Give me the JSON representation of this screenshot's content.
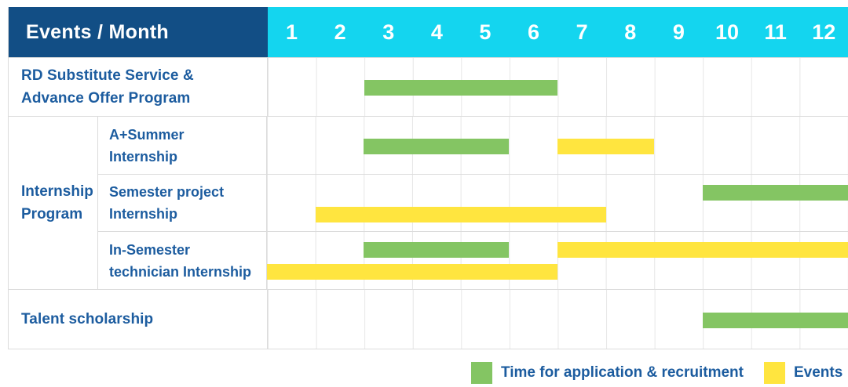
{
  "header": {
    "label": "Events / Month",
    "months": [
      "1",
      "2",
      "3",
      "4",
      "5",
      "6",
      "7",
      "8",
      "9",
      "10",
      "11",
      "12"
    ]
  },
  "colors": {
    "navy": "#124E85",
    "cyan": "#14D5EF",
    "green": "#84C563",
    "yellow": "#FFE53F",
    "text_blue": "#1C5C9F",
    "grid_line": "#e6e6e6"
  },
  "legend": {
    "items": [
      {
        "kind": "application",
        "label": "Time for application & recruitment"
      },
      {
        "kind": "event",
        "label": "Events"
      }
    ]
  },
  "chart_data": {
    "type": "bar",
    "subtype": "gantt-schedule-table",
    "x_unit": "month",
    "x_range": [
      1,
      12
    ],
    "bar_kinds": {
      "application": "Time for application & recruitment",
      "event": "Events"
    },
    "rows": [
      {
        "kind": "simple",
        "label_lines": [
          "RD Substitute Service &",
          "Advance Offer Program"
        ],
        "height": 75,
        "bars": [
          {
            "kind": "application",
            "start": 3,
            "end": 6,
            "lane": "center"
          }
        ]
      },
      {
        "kind": "group",
        "label_lines": [
          "Internship",
          "Program"
        ],
        "children": [
          {
            "label_lines": [
              "A+Summer",
              "Internship"
            ],
            "height": 73,
            "bars": [
              {
                "kind": "application",
                "start": 3,
                "end": 5,
                "lane": "center"
              },
              {
                "kind": "event",
                "start": 7,
                "end": 8,
                "lane": "center"
              }
            ]
          },
          {
            "label_lines": [
              "Semester project",
              "Internship"
            ],
            "height": 73,
            "bars": [
              {
                "kind": "application",
                "start": 10,
                "end": 12,
                "lane": "top"
              },
              {
                "kind": "event",
                "start": 2,
                "end": 7,
                "lane": "bottom"
              }
            ]
          },
          {
            "label_lines": [
              "In-Semester",
              "technician Internship"
            ],
            "height": 74,
            "bars": [
              {
                "kind": "application",
                "start": 3,
                "end": 5,
                "lane": "top"
              },
              {
                "kind": "event",
                "start": 7,
                "end": 12,
                "lane": "top"
              },
              {
                "kind": "event",
                "start": 1,
                "end": 6,
                "lane": "bottom"
              }
            ]
          }
        ]
      },
      {
        "kind": "simple",
        "label_lines": [
          "Talent scholarship"
        ],
        "height": 76,
        "bars": [
          {
            "kind": "application",
            "start": 10,
            "end": 12,
            "lane": "center"
          }
        ]
      }
    ]
  }
}
